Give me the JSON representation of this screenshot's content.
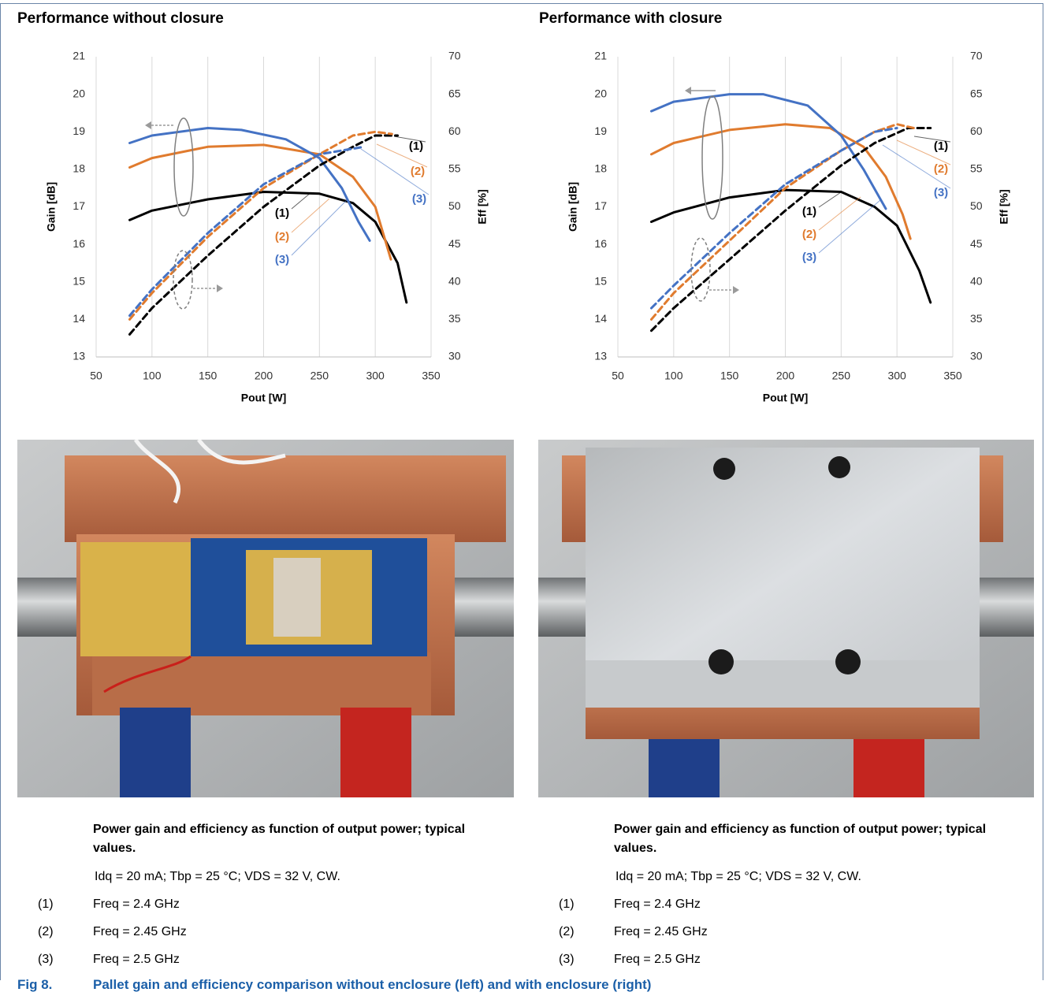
{
  "chart_data": [
    {
      "type": "line",
      "title": "Performance without closure",
      "x_label": "Pout [W]",
      "y_label": "Gain [dB]",
      "y2_label": "Eff [%]",
      "xlim": [
        50,
        350
      ],
      "xticks": [
        50,
        100,
        150,
        200,
        250,
        300,
        350
      ],
      "ylim": [
        13,
        21
      ],
      "yticks": [
        13,
        14,
        15,
        16,
        17,
        18,
        19,
        20,
        21
      ],
      "y2lim": [
        30,
        70
      ],
      "y2ticks": [
        30,
        35,
        40,
        45,
        50,
        55,
        60,
        65,
        70
      ],
      "grid": "x",
      "series": [
        {
          "color": "#000000",
          "dashed": false,
          "axis": "y",
          "x": [
            80,
            100,
            150,
            200,
            250,
            280,
            300,
            320,
            328
          ],
          "values": [
            16.65,
            16.9,
            17.2,
            17.4,
            17.35,
            17.1,
            16.6,
            15.5,
            14.45
          ]
        },
        {
          "color": "#e07b2e",
          "dashed": false,
          "axis": "y",
          "x": [
            80,
            100,
            150,
            200,
            250,
            280,
            300,
            314
          ],
          "values": [
            18.05,
            18.3,
            18.6,
            18.65,
            18.4,
            17.8,
            17.0,
            15.6
          ]
        },
        {
          "color": "#4472c4",
          "dashed": false,
          "axis": "y",
          "x": [
            80,
            100,
            150,
            180,
            220,
            250,
            270,
            285,
            295
          ],
          "values": [
            18.7,
            18.9,
            19.1,
            19.05,
            18.8,
            18.3,
            17.5,
            16.6,
            16.1
          ]
        },
        {
          "color": "#000000",
          "dashed": true,
          "axis": "y2",
          "x": [
            80,
            100,
            150,
            200,
            250,
            280,
            300,
            320
          ],
          "values": [
            33,
            36.5,
            43.5,
            50,
            55.5,
            58,
            59.5,
            59.5
          ]
        },
        {
          "color": "#e07b2e",
          "dashed": true,
          "axis": "y2",
          "x": [
            80,
            100,
            150,
            200,
            250,
            280,
            300,
            315
          ],
          "values": [
            35,
            38.5,
            46,
            52.5,
            57,
            59.5,
            60,
            59.7
          ]
        },
        {
          "color": "#4472c4",
          "dashed": true,
          "axis": "y2",
          "x": [
            80,
            100,
            150,
            200,
            250,
            290
          ],
          "values": [
            35.5,
            39,
            46.5,
            53,
            57,
            58
          ]
        }
      ],
      "annotations": [
        {
          "text": "(1)",
          "color": "#000000"
        },
        {
          "text": "(2)",
          "color": "#e07b2e"
        },
        {
          "text": "(3)",
          "color": "#4472c4"
        },
        {
          "text": "(1)",
          "color": "#000000"
        },
        {
          "text": "(2)",
          "color": "#e07b2e"
        },
        {
          "text": "(3)",
          "color": "#4472c4"
        }
      ]
    },
    {
      "type": "line",
      "title": "Performance with closure",
      "x_label": "Pout [W]",
      "y_label": "Gain [dB]",
      "y2_label": "Eff [%]",
      "xlim": [
        50,
        350
      ],
      "xticks": [
        50,
        100,
        150,
        200,
        250,
        300,
        350
      ],
      "ylim": [
        13,
        21
      ],
      "yticks": [
        13,
        14,
        15,
        16,
        17,
        18,
        19,
        20,
        21
      ],
      "y2lim": [
        30,
        70
      ],
      "y2ticks": [
        30,
        35,
        40,
        45,
        50,
        55,
        60,
        65,
        70
      ],
      "grid": "x",
      "series": [
        {
          "color": "#000000",
          "dashed": false,
          "axis": "y",
          "x": [
            80,
            100,
            150,
            200,
            250,
            280,
            300,
            320,
            330
          ],
          "values": [
            16.6,
            16.85,
            17.25,
            17.45,
            17.4,
            17.0,
            16.5,
            15.3,
            14.45
          ]
        },
        {
          "color": "#e07b2e",
          "dashed": false,
          "axis": "y",
          "x": [
            80,
            100,
            150,
            200,
            240,
            270,
            290,
            305,
            312
          ],
          "values": [
            18.4,
            18.7,
            19.05,
            19.2,
            19.1,
            18.6,
            17.8,
            16.8,
            16.15
          ]
        },
        {
          "color": "#4472c4",
          "dashed": false,
          "axis": "y",
          "x": [
            80,
            100,
            150,
            180,
            220,
            250,
            270,
            290
          ],
          "values": [
            19.55,
            19.8,
            20.0,
            20.0,
            19.7,
            18.9,
            18.0,
            16.95
          ]
        },
        {
          "color": "#000000",
          "dashed": true,
          "axis": "y2",
          "x": [
            80,
            100,
            150,
            200,
            250,
            280,
            310,
            330
          ],
          "values": [
            33.5,
            36.5,
            43,
            49.5,
            55.5,
            58.5,
            60.5,
            60.5
          ]
        },
        {
          "color": "#e07b2e",
          "dashed": true,
          "axis": "y2",
          "x": [
            80,
            100,
            150,
            200,
            250,
            280,
            300,
            315
          ],
          "values": [
            35,
            38.5,
            45.5,
            52.5,
            57.5,
            60,
            61,
            60.5
          ]
        },
        {
          "color": "#4472c4",
          "dashed": true,
          "axis": "y2",
          "x": [
            80,
            100,
            150,
            200,
            250,
            280,
            300
          ],
          "values": [
            36.5,
            39.5,
            46.5,
            53,
            57.5,
            60,
            60.5
          ]
        }
      ],
      "annotations": [
        {
          "text": "(1)",
          "color": "#000000"
        },
        {
          "text": "(2)",
          "color": "#e07b2e"
        },
        {
          "text": "(3)",
          "color": "#4472c4"
        },
        {
          "text": "(1)",
          "color": "#000000"
        },
        {
          "text": "(2)",
          "color": "#e07b2e"
        },
        {
          "text": "(3)",
          "color": "#4472c4"
        }
      ]
    }
  ],
  "captions": [
    {
      "heading": "Power gain and efficiency as function of output power; typical values.",
      "conditions": "Idq = 20 mA; Tbp = 25 °C; VDS = 32 V, CW.",
      "items": [
        {
          "label": "(1)",
          "text": "Freq = 2.4 GHz"
        },
        {
          "label": "(2)",
          "text": "Freq = 2.45 GHz"
        },
        {
          "label": "(3)",
          "text": "Freq = 2.5 GHz"
        }
      ]
    },
    {
      "heading": "Power gain and efficiency as function of output power; typical values.",
      "conditions": "Idq = 20 mA; Tbp = 25 °C; VDS = 32 V, CW.",
      "items": [
        {
          "label": "(1)",
          "text": "Freq = 2.4 GHz"
        },
        {
          "label": "(2)",
          "text": "Freq = 2.45 GHz"
        },
        {
          "label": "(3)",
          "text": "Freq = 2.5 GHz"
        }
      ]
    }
  ],
  "figure": {
    "label": "Fig 8.",
    "text": "Pallet gain and efficiency comparison without enclosure (left) and with enclosure (right)"
  }
}
